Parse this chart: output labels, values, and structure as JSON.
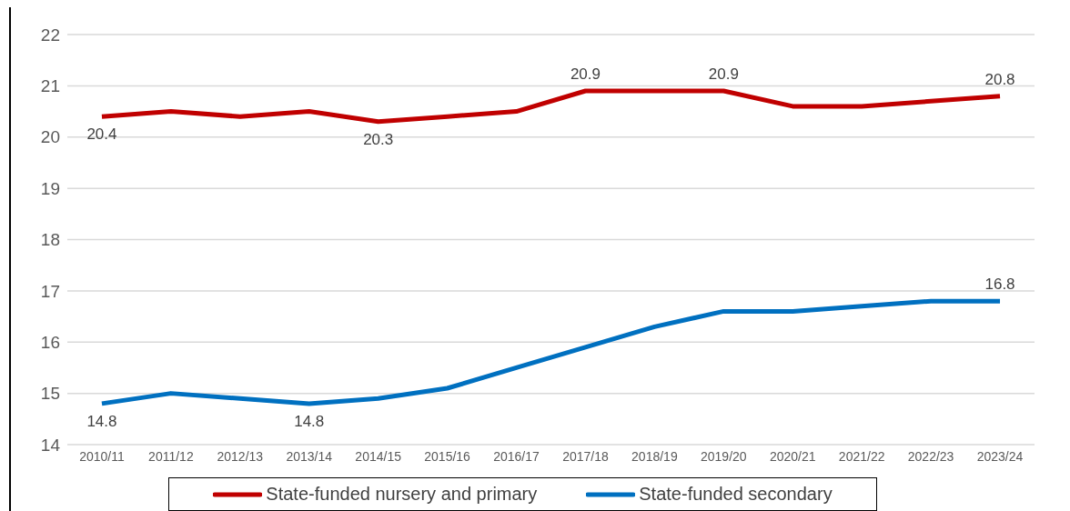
{
  "chart_data": {
    "type": "line",
    "categories": [
      "2010/11",
      "2011/12",
      "2012/13",
      "2013/14",
      "2014/15",
      "2015/16",
      "2016/17",
      "2017/18",
      "2018/19",
      "2019/20",
      "2020/21",
      "2021/22",
      "2022/23",
      "2023/24"
    ],
    "series": [
      {
        "name": "State-funded nursery and primary",
        "color": "#c00000",
        "values": [
          20.4,
          20.5,
          20.4,
          20.5,
          20.3,
          20.4,
          20.5,
          20.9,
          20.9,
          20.9,
          20.6,
          20.6,
          20.7,
          20.8
        ],
        "value_labels": [
          "20.4",
          null,
          null,
          null,
          "20.3",
          null,
          null,
          "20.9",
          null,
          "20.9",
          null,
          null,
          null,
          "20.8"
        ]
      },
      {
        "name": "State-funded secondary",
        "color": "#0070c0",
        "values": [
          14.8,
          15.0,
          14.9,
          14.8,
          14.9,
          15.1,
          15.5,
          15.9,
          16.3,
          16.6,
          16.6,
          16.7,
          16.8,
          16.8
        ],
        "value_labels": [
          "14.8",
          null,
          null,
          "14.8",
          null,
          null,
          null,
          null,
          null,
          null,
          null,
          null,
          null,
          "16.8"
        ]
      }
    ],
    "ylim": [
      14,
      22
    ],
    "yticks": [
      14,
      15,
      16,
      17,
      18,
      19,
      20,
      21,
      22
    ],
    "grid": "y",
    "legend": "bottom",
    "marker": "none",
    "line_style": "solid"
  }
}
